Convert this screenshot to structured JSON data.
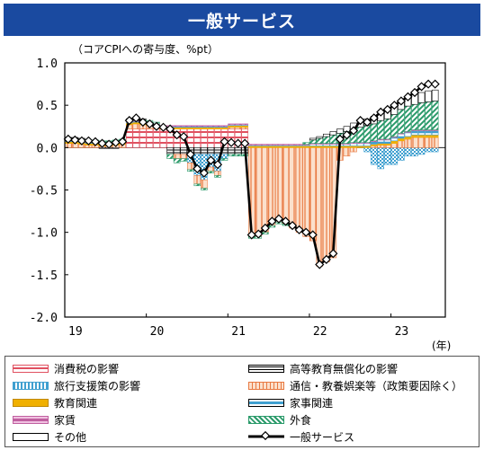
{
  "title": "一般サービス",
  "chart_data": {
    "type": "bar",
    "unit_label": "（コアCPIへの寄与度、%pt）",
    "x_unit": "(年)",
    "x_ticks": [
      "19",
      "20",
      "21",
      "22",
      "23"
    ],
    "y_ticks": [
      "1.0",
      "0.5",
      "0.0",
      "-0.5",
      "-1.0",
      "-1.5",
      "-2.0"
    ],
    "ylim": [
      -2.0,
      1.0
    ],
    "x_start": "2019-01",
    "categories": [
      "2019-01",
      "2019-02",
      "2019-03",
      "2019-04",
      "2019-05",
      "2019-06",
      "2019-07",
      "2019-08",
      "2019-09",
      "2019-10",
      "2019-11",
      "2019-12",
      "2020-01",
      "2020-02",
      "2020-03",
      "2020-04",
      "2020-05",
      "2020-06",
      "2020-07",
      "2020-08",
      "2020-09",
      "2020-10",
      "2020-11",
      "2020-12",
      "2021-01",
      "2021-02",
      "2021-03",
      "2021-04",
      "2021-05",
      "2021-06",
      "2021-07",
      "2021-08",
      "2021-09",
      "2021-10",
      "2021-11",
      "2021-12",
      "2022-01",
      "2022-02",
      "2022-03",
      "2022-04",
      "2022-05",
      "2022-06",
      "2022-07",
      "2022-08",
      "2022-09",
      "2022-10",
      "2022-11",
      "2022-12",
      "2023-01",
      "2023-02",
      "2023-03",
      "2023-04",
      "2023-05",
      "2023-06",
      "2023-07"
    ],
    "series": [
      {
        "name": "消費税の影響",
        "color": "#e05060",
        "pattern": "tax",
        "values": [
          0,
          0,
          0,
          0,
          0,
          0,
          0,
          0,
          0,
          0.22,
          0.22,
          0.22,
          0.22,
          0.22,
          0.22,
          0.22,
          0.22,
          0.22,
          0.22,
          0.22,
          0.22,
          0.22,
          0.22,
          0.22,
          0.22,
          0.22,
          0.22,
          0,
          0,
          0,
          0,
          0,
          0,
          0,
          0,
          0,
          0,
          0,
          0,
          0,
          0,
          0,
          0,
          0,
          0,
          0,
          0,
          0,
          0,
          0,
          0,
          0,
          0,
          0,
          0
        ]
      },
      {
        "name": "高等教育無償化の影響",
        "color": "#000000",
        "pattern": "edu",
        "values": [
          0,
          0,
          0,
          0,
          0,
          0,
          0,
          0,
          0,
          0,
          0,
          0,
          0,
          0,
          0,
          -0.08,
          -0.08,
          -0.08,
          -0.08,
          -0.08,
          -0.08,
          -0.08,
          -0.08,
          -0.08,
          -0.08,
          -0.08,
          -0.08,
          0,
          0,
          0,
          0,
          0,
          0,
          0,
          0,
          0,
          0,
          0,
          0,
          0,
          0,
          0,
          0,
          0,
          0,
          0,
          0,
          0,
          0,
          0,
          0,
          0,
          0,
          0,
          0
        ]
      },
      {
        "name": "旅行支援策の影響",
        "color": "#40a0d0",
        "pattern": "travel",
        "values": [
          0,
          0,
          0,
          0,
          0,
          0,
          0,
          0,
          0,
          0,
          0,
          0,
          0,
          0,
          0,
          0,
          0,
          0,
          -0.1,
          -0.25,
          -0.3,
          -0.15,
          -0.2,
          -0.05,
          0,
          0,
          0,
          0,
          0,
          0,
          0,
          0,
          0,
          0,
          0,
          0,
          0,
          0,
          0,
          0,
          0,
          0,
          0,
          0,
          -0.05,
          -0.2,
          -0.25,
          -0.2,
          -0.2,
          -0.15,
          -0.1,
          -0.1,
          -0.08,
          -0.05,
          -0.05
        ]
      },
      {
        "name": "通信・教養娯楽等（政策要因除く）",
        "color": "#e87840",
        "pattern": "comm",
        "values": [
          0.05,
          0.05,
          0.04,
          0.03,
          0.03,
          0.02,
          0.02,
          0.03,
          0.04,
          0.05,
          0.06,
          0.05,
          0.04,
          0.02,
          0,
          0,
          -0.05,
          -0.05,
          -0.08,
          -0.1,
          -0.1,
          -0.05,
          -0.05,
          0,
          0.02,
          0.02,
          0.02,
          -1.05,
          -1.05,
          -1.0,
          -0.92,
          -0.88,
          -0.9,
          -0.95,
          -1.0,
          -1.05,
          -1.1,
          -1.4,
          -1.35,
          -1.3,
          -0.15,
          -0.1,
          -0.05,
          0,
          0,
          0.02,
          0.03,
          0.03,
          0.05,
          0.08,
          0.1,
          0.12,
          0.12,
          0.12,
          0.12
        ]
      },
      {
        "name": "教育関連",
        "color": "#f0b000",
        "pattern": "solid",
        "values": [
          0.02,
          0.02,
          0.02,
          0.02,
          0.02,
          0.02,
          0.02,
          0.02,
          0.02,
          0.02,
          0.02,
          0.02,
          0.02,
          0.02,
          0.02,
          0.02,
          0.02,
          0.02,
          0.02,
          0.02,
          0.02,
          0.02,
          0.02,
          0.02,
          0.02,
          0.02,
          0.02,
          0.02,
          0.02,
          0.02,
          0.02,
          0.02,
          0.02,
          0.02,
          0.02,
          0.02,
          0.02,
          0.02,
          0.02,
          0.02,
          0.02,
          0.02,
          0.02,
          0.02,
          0.02,
          0.02,
          0.02,
          0.02,
          0.03,
          0.03,
          0.03,
          0.03,
          0.03,
          0.03,
          0.03
        ]
      },
      {
        "name": "家事関連",
        "color": "#40a0d0",
        "pattern": "hh",
        "values": [
          0.01,
          0.01,
          0.01,
          0.01,
          0.01,
          0.01,
          0.01,
          0.01,
          0.01,
          0.01,
          0.01,
          0.01,
          0.01,
          0.01,
          0.01,
          0.01,
          0.01,
          0.01,
          0.01,
          0.01,
          0.01,
          0.01,
          0.01,
          0.01,
          0.01,
          0.01,
          0.01,
          0.01,
          0.01,
          0.01,
          0.01,
          0.01,
          0.01,
          0.01,
          0.01,
          0.01,
          0.02,
          0.02,
          0.02,
          0.02,
          0.02,
          0.02,
          0.03,
          0.03,
          0.03,
          0.03,
          0.04,
          0.04,
          0.04,
          0.05,
          0.05,
          0.05,
          0.05,
          0.05,
          0.05
        ]
      },
      {
        "name": "家賃",
        "color": "#c060a0",
        "pattern": "rent",
        "values": [
          0.01,
          0.01,
          0.01,
          0.01,
          0.01,
          0.01,
          0.01,
          0.01,
          0.01,
          0.01,
          0.01,
          0.01,
          0.01,
          0.01,
          0.01,
          0.01,
          0.01,
          0.01,
          0.01,
          0.01,
          0.01,
          0.01,
          0.01,
          0.01,
          0.01,
          0.01,
          0.01,
          0.01,
          0.01,
          0.01,
          0.01,
          0.01,
          0.01,
          0.01,
          0.01,
          0.01,
          0.01,
          0.01,
          0.01,
          0.01,
          0.01,
          0.01,
          0.01,
          0.01,
          0.01,
          0.01,
          0.01,
          0.01,
          0.01,
          0.01,
          0.01,
          0.01,
          0.01,
          0.01,
          0.01
        ]
      },
      {
        "name": "外食",
        "color": "#2a9a6a",
        "pattern": "dine",
        "values": [
          0.02,
          0.02,
          0.02,
          0.02,
          0.02,
          0.02,
          0.02,
          0.02,
          0.02,
          0.02,
          0.02,
          0.02,
          0.02,
          0.02,
          0,
          -0.05,
          -0.05,
          -0.03,
          -0.02,
          -0.02,
          -0.02,
          -0.02,
          -0.02,
          -0.02,
          -0.02,
          -0.02,
          -0.02,
          -0.02,
          -0.02,
          -0.02,
          -0.02,
          -0.02,
          -0.02,
          0,
          0,
          0.02,
          0.04,
          0.06,
          0.08,
          0.1,
          0.12,
          0.14,
          0.16,
          0.18,
          0.2,
          0.2,
          0.22,
          0.24,
          0.26,
          0.28,
          0.3,
          0.3,
          0.32,
          0.33,
          0.34
        ]
      },
      {
        "name": "その他",
        "color": "#ffffff",
        "pattern": "other",
        "values": [
          0.01,
          0.01,
          0.01,
          0.0,
          0.0,
          -0.01,
          -0.01,
          -0.01,
          0.0,
          0.01,
          0.01,
          0.01,
          0.0,
          0.0,
          0.0,
          0.0,
          0.0,
          0.0,
          0.0,
          0.0,
          0.0,
          0.0,
          0.0,
          0.0,
          0.0,
          0.0,
          0.0,
          0.0,
          0.0,
          0.0,
          0.0,
          0.0,
          0.0,
          0.0,
          0.0,
          0.0,
          0.02,
          0.02,
          0.03,
          0.04,
          0.05,
          0.06,
          0.07,
          0.08,
          0.08,
          0.09,
          0.1,
          0.1,
          0.11,
          0.11,
          0.12,
          0.12,
          0.12,
          0.13,
          0.13
        ]
      }
    ],
    "line": {
      "name": "一般サービス",
      "values": [
        0.1,
        0.09,
        0.08,
        0.08,
        0.07,
        0.05,
        0.04,
        0.06,
        0.07,
        0.32,
        0.35,
        0.3,
        0.28,
        0.25,
        0.24,
        0.22,
        0.15,
        0.13,
        -0.08,
        -0.25,
        -0.3,
        -0.15,
        -0.2,
        0.07,
        0.06,
        0.05,
        0.05,
        -1.03,
        -1.02,
        -0.95,
        -0.87,
        -0.84,
        -0.87,
        -0.92,
        -0.97,
        -1.0,
        -1.03,
        -1.38,
        -1.32,
        -1.25,
        0.1,
        0.15,
        0.2,
        0.32,
        0.3,
        0.35,
        0.42,
        0.45,
        0.5,
        0.55,
        0.6,
        0.65,
        0.72,
        0.75,
        0.75
      ]
    }
  },
  "legend": [
    {
      "label": "消費税の影響",
      "icon": "tax-swatch"
    },
    {
      "label": "高等教育無償化の影響",
      "icon": "edu-swatch"
    },
    {
      "label": "旅行支援策の影響",
      "icon": "travel-swatch"
    },
    {
      "label": "通信・教養娯楽等（政策要因除く）",
      "icon": "comm-swatch"
    },
    {
      "label": "教育関連",
      "icon": "educ-swatch"
    },
    {
      "label": "家事関連",
      "icon": "hh-swatch"
    },
    {
      "label": "家賃",
      "icon": "rent-swatch"
    },
    {
      "label": "外食",
      "icon": "dine-swatch"
    },
    {
      "label": "その他",
      "icon": "other-swatch"
    },
    {
      "label": "一般サービス",
      "icon": "line-swatch"
    }
  ]
}
